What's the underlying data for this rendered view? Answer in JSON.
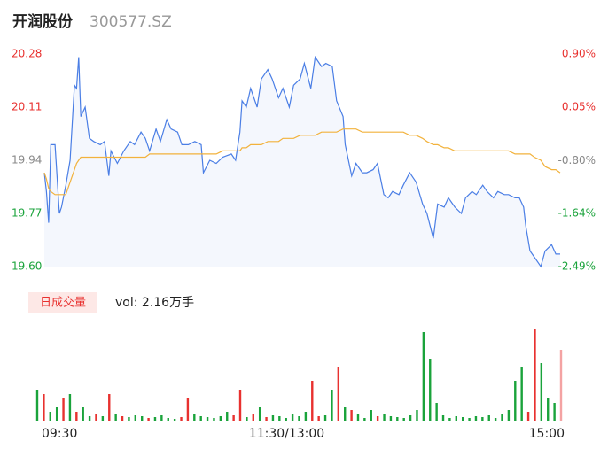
{
  "header": {
    "name": "开润股份",
    "code": "300577.SZ"
  },
  "chart_data": [
    {
      "type": "line",
      "x": [
        0,
        1,
        2,
        3,
        5,
        7,
        8,
        10,
        12,
        14,
        15,
        16,
        17,
        19,
        21,
        23,
        26,
        28,
        30,
        31,
        34,
        37,
        40,
        42,
        45,
        47,
        49,
        52,
        54,
        57,
        59,
        62,
        64,
        67,
        70,
        73,
        74,
        77,
        80,
        83,
        87,
        89,
        91,
        92,
        94,
        96,
        99,
        101,
        104,
        106,
        109,
        111,
        114,
        116,
        119,
        121,
        124,
        126,
        129,
        131,
        134,
        136,
        139,
        140,
        143,
        145,
        148,
        150,
        153,
        155,
        158,
        160,
        162,
        165,
        167,
        170,
        173,
        176,
        178,
        181,
        183,
        186,
        188,
        191,
        194,
        196,
        199,
        201,
        204,
        206,
        209,
        211,
        214,
        216,
        219,
        221,
        223,
        224,
        226,
        228,
        231,
        233,
        236,
        238,
        240
      ],
      "xlim": [
        0,
        240
      ],
      "series": [
        {
          "name": "price",
          "color": "#4a7ee5",
          "fill": "#f4f7fd",
          "values": [
            19.9,
            19.84,
            19.74,
            19.99,
            19.99,
            19.77,
            19.79,
            19.86,
            19.94,
            20.18,
            20.17,
            20.27,
            20.08,
            20.11,
            20.01,
            20.0,
            19.99,
            20.0,
            19.89,
            19.97,
            19.93,
            19.97,
            20.0,
            19.99,
            20.03,
            20.01,
            19.97,
            20.04,
            20.0,
            20.07,
            20.04,
            20.03,
            19.99,
            19.99,
            20.0,
            19.99,
            19.9,
            19.94,
            19.93,
            19.95,
            19.96,
            19.94,
            20.03,
            20.13,
            20.11,
            20.17,
            20.11,
            20.2,
            20.23,
            20.2,
            20.14,
            20.17,
            20.11,
            20.18,
            20.2,
            20.25,
            20.17,
            20.27,
            20.24,
            20.25,
            20.24,
            20.13,
            20.08,
            19.99,
            19.89,
            19.93,
            19.9,
            19.9,
            19.91,
            19.93,
            19.83,
            19.82,
            19.84,
            19.83,
            19.86,
            19.9,
            19.87,
            19.8,
            19.77,
            19.69,
            19.8,
            19.79,
            19.82,
            19.79,
            19.77,
            19.82,
            19.84,
            19.83,
            19.86,
            19.84,
            19.82,
            19.84,
            19.83,
            19.83,
            19.82,
            19.82,
            19.79,
            19.73,
            19.65,
            19.63,
            19.6,
            19.65,
            19.67,
            19.64,
            19.64
          ]
        },
        {
          "name": "average",
          "color": "#f2b23c",
          "values": [
            19.9,
            19.88,
            19.85,
            19.84,
            19.83,
            19.83,
            19.83,
            19.83,
            19.87,
            19.91,
            19.93,
            19.94,
            19.95,
            19.95,
            19.95,
            19.95,
            19.95,
            19.95,
            19.95,
            19.95,
            19.95,
            19.95,
            19.95,
            19.95,
            19.95,
            19.95,
            19.96,
            19.96,
            19.96,
            19.96,
            19.96,
            19.96,
            19.96,
            19.96,
            19.96,
            19.96,
            19.96,
            19.96,
            19.96,
            19.97,
            19.97,
            19.97,
            19.97,
            19.98,
            19.98,
            19.99,
            19.99,
            19.99,
            20.0,
            20.0,
            20.0,
            20.01,
            20.01,
            20.01,
            20.02,
            20.02,
            20.02,
            20.02,
            20.03,
            20.03,
            20.03,
            20.03,
            20.04,
            20.04,
            20.04,
            20.04,
            20.03,
            20.03,
            20.03,
            20.03,
            20.03,
            20.03,
            20.03,
            20.03,
            20.03,
            20.02,
            20.02,
            20.01,
            20.0,
            19.99,
            19.99,
            19.98,
            19.98,
            19.97,
            19.97,
            19.97,
            19.97,
            19.97,
            19.97,
            19.97,
            19.97,
            19.97,
            19.97,
            19.97,
            19.96,
            19.96,
            19.96,
            19.96,
            19.96,
            19.95,
            19.94,
            19.92,
            19.91,
            19.91,
            19.9
          ]
        }
      ],
      "ylim": [
        19.6,
        20.28
      ],
      "yticks": [
        {
          "value": 20.28,
          "label": "20.28"
        },
        {
          "value": 20.11,
          "label": "20.11"
        },
        {
          "value": 19.94,
          "label": "19.94"
        },
        {
          "value": 19.77,
          "label": "19.77"
        },
        {
          "value": 19.6,
          "label": "19.60"
        }
      ],
      "ytick_colors": [
        "#e8312f",
        "#e8312f",
        "#888888",
        "#1aa33b",
        "#1aa33b"
      ],
      "y2lim": [
        -2.49,
        0.9
      ],
      "y2ticks": [
        {
          "value": 0.9,
          "label": "0.90%"
        },
        {
          "value": 0.05,
          "label": "0.05%"
        },
        {
          "value": -0.8,
          "label": "-0.80%"
        },
        {
          "value": -1.64,
          "label": "-1.64%"
        },
        {
          "value": -2.49,
          "label": "-2.49%"
        }
      ],
      "y2tick_colors": [
        "#e8312f",
        "#e8312f",
        "#888888",
        "#1aa33b",
        "#1aa33b"
      ]
    },
    {
      "type": "bar",
      "legend_label": "日成交量",
      "volume_text": "vol: 2.16万手",
      "xlim": [
        0,
        240
      ],
      "xticks": [
        {
          "value": 0,
          "label": "09:30"
        },
        {
          "value": 120,
          "label": "11:30/13:00"
        },
        {
          "value": 240,
          "label": "15:00"
        }
      ],
      "ylim": [
        0,
        105
      ],
      "values": [
        35,
        30,
        10,
        15,
        25,
        30,
        10,
        15,
        5,
        8,
        5,
        30,
        8,
        5,
        4,
        6,
        5,
        3,
        4,
        6,
        3,
        2,
        4,
        25,
        8,
        5,
        4,
        3,
        5,
        10,
        6,
        35,
        4,
        8,
        15,
        4,
        6,
        5,
        3,
        8,
        5,
        10,
        45,
        5,
        6,
        35,
        60,
        15,
        12,
        8,
        3,
        12,
        5,
        8,
        5,
        4,
        3,
        6,
        12,
        100,
        70,
        20,
        6,
        3,
        5,
        4,
        3,
        5,
        4,
        6,
        3,
        8,
        12,
        45,
        60,
        10,
        103,
        65,
        25,
        20,
        80
      ],
      "colors": [
        "#1aa33b",
        "#e8312f",
        "#1aa33b",
        "#1aa33b",
        "#e8312f",
        "#1aa33b",
        "#e8312f",
        "#1aa33b",
        "#1aa33b",
        "#e8312f",
        "#1aa33b",
        "#e8312f",
        "#1aa33b",
        "#e8312f",
        "#1aa33b",
        "#1aa33b",
        "#1aa33b",
        "#e8312f",
        "#1aa33b",
        "#1aa33b",
        "#1aa33b",
        "#1aa33b",
        "#e8312f",
        "#e8312f",
        "#1aa33b",
        "#1aa33b",
        "#1aa33b",
        "#1aa33b",
        "#1aa33b",
        "#1aa33b",
        "#e8312f",
        "#e8312f",
        "#1aa33b",
        "#e8312f",
        "#1aa33b",
        "#e8312f",
        "#1aa33b",
        "#1aa33b",
        "#1aa33b",
        "#1aa33b",
        "#1aa33b",
        "#1aa33b",
        "#e8312f",
        "#e8312f",
        "#1aa33b",
        "#1aa33b",
        "#e8312f",
        "#1aa33b",
        "#e8312f",
        "#1aa33b",
        "#1aa33b",
        "#1aa33b",
        "#e8312f",
        "#1aa33b",
        "#1aa33b",
        "#1aa33b",
        "#1aa33b",
        "#1aa33b",
        "#1aa33b",
        "#1aa33b",
        "#1aa33b",
        "#1aa33b",
        "#1aa33b",
        "#1aa33b",
        "#1aa33b",
        "#1aa33b",
        "#1aa33b",
        "#1aa33b",
        "#1aa33b",
        "#1aa33b",
        "#1aa33b",
        "#1aa33b",
        "#1aa33b",
        "#1aa33b",
        "#1aa33b",
        "#e8312f",
        "#e8312f",
        "#1aa33b",
        "#1aa33b",
        "#1aa33b",
        "#f4a3a3"
      ]
    }
  ]
}
